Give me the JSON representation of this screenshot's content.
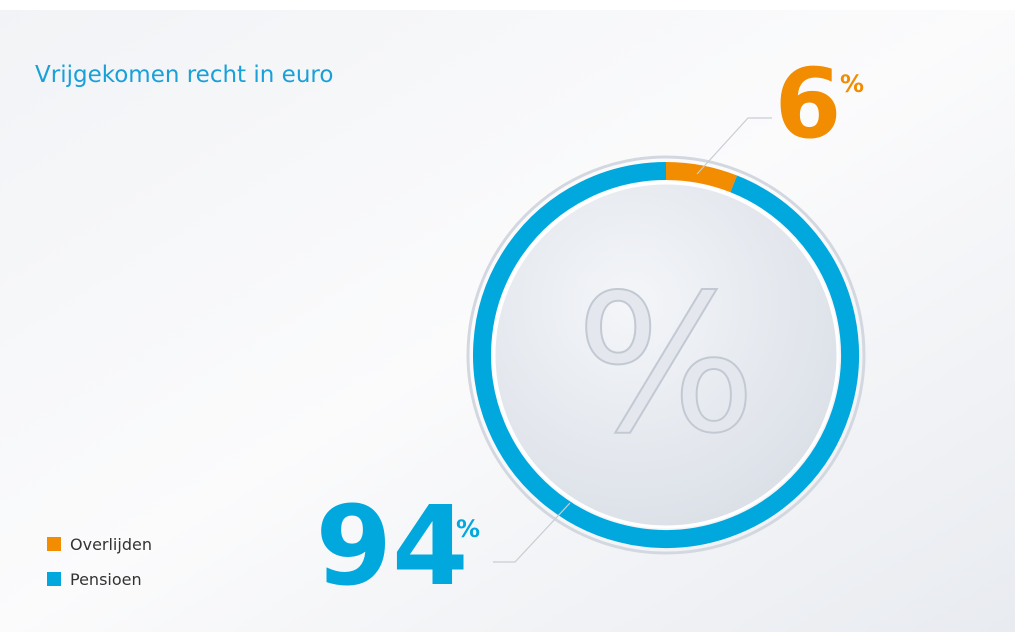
{
  "chart_data": {
    "type": "donut",
    "title": "Vrijgekomen recht in euro",
    "unit": "%",
    "categories": [
      "Overlijden",
      "Pensioen"
    ],
    "values": [
      6,
      94
    ],
    "colors": [
      "#f28c00",
      "#00a8de"
    ]
  }
}
